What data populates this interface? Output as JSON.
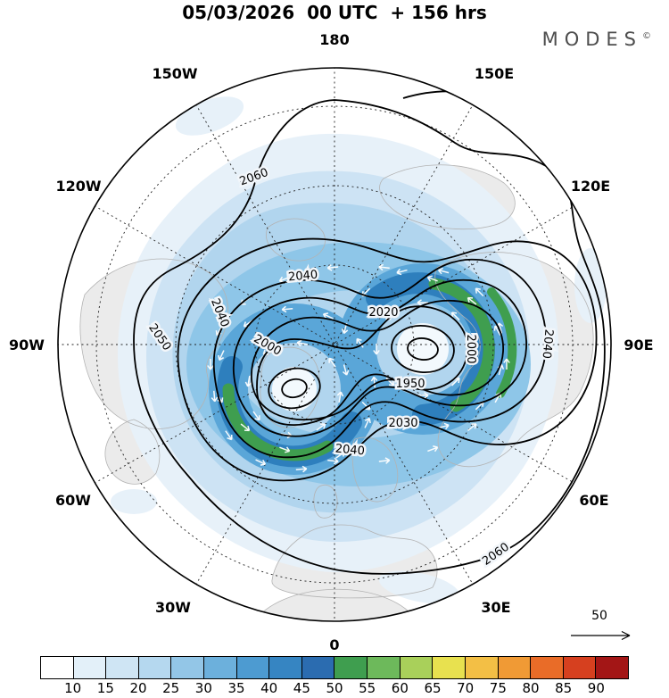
{
  "header": {
    "title": "05/03/2026  00 UTC  + 156 hrs",
    "brand": "MODES",
    "brand_mark": "©"
  },
  "map": {
    "lon_labels": [
      "180",
      "150W",
      "150E",
      "120W",
      "120E",
      "90W",
      "90E",
      "60W",
      "60E",
      "30W",
      "30E",
      "0"
    ],
    "contour_labels": [
      "2060",
      "2040",
      "2040",
      "2050",
      "2020",
      "2000",
      "1950",
      "2030",
      "2040",
      "2000",
      "2040",
      "2060"
    ]
  },
  "reference_arrow": {
    "label": "50"
  },
  "colorbar": {
    "ticks": [
      "10",
      "15",
      "20",
      "25",
      "30",
      "35",
      "40",
      "45",
      "50",
      "55",
      "60",
      "65",
      "70",
      "75",
      "80",
      "85",
      "90"
    ],
    "colors": [
      "#ffffff",
      "#e3f0f9",
      "#cfe5f4",
      "#b5d8ef",
      "#93c6e7",
      "#6cb0dc",
      "#4d9bd1",
      "#3685c2",
      "#2b6cb0",
      "#3f9e4f",
      "#6db95b",
      "#a9d05a",
      "#e8e14f",
      "#f3bf45",
      "#f09a35",
      "#e96c28",
      "#d6401f",
      "#a31616"
    ]
  },
  "chart_data": {
    "type": "heatmap",
    "title": "05/03/2026 00 UTC + 156 hrs",
    "projection": "north-polar-stereographic",
    "description": "Northern Hemisphere forecast chart: black contours of a geopotential-height-like field, blue-to-red shading of wind speed, white wind vectors around a two-center circumpolar vortex",
    "contour_levels_labeled": [
      1950,
      2000,
      2020,
      2030,
      2040,
      2050,
      2060
    ],
    "shading_ticks": [
      10,
      15,
      20,
      25,
      30,
      35,
      40,
      45,
      50,
      55,
      60,
      65,
      70,
      75,
      80,
      85,
      90
    ],
    "shading_colors": [
      "#ffffff",
      "#e3f0f9",
      "#cfe5f4",
      "#b5d8ef",
      "#93c6e7",
      "#6cb0dc",
      "#4d9bd1",
      "#3685c2",
      "#2b6cb0",
      "#3f9e4f",
      "#6db95b",
      "#a9d05a",
      "#e8e14f",
      "#f3bf45",
      "#f09a35",
      "#e96c28",
      "#d6401f",
      "#a31616"
    ],
    "reference_vector": 50,
    "longitude_labels": [
      "180",
      "150W",
      "150E",
      "120W",
      "120E",
      "90W",
      "90E",
      "60W",
      "60E",
      "30W",
      "30E",
      "0"
    ],
    "legend_position": "bottom"
  }
}
